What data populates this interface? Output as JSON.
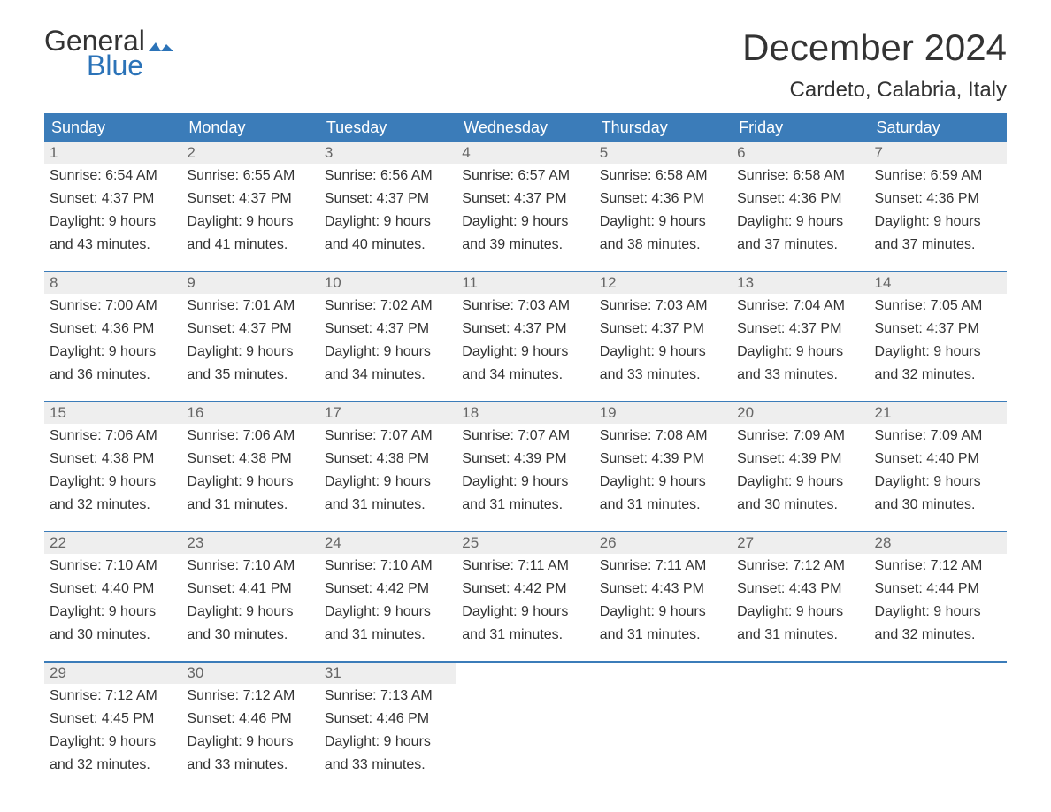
{
  "logo": {
    "general": "General",
    "blue": "Blue",
    "flag_color": "#2b73b8"
  },
  "title": "December 2024",
  "location": "Cardeto, Calabria, Italy",
  "day_labels": [
    "Sunday",
    "Monday",
    "Tuesday",
    "Wednesday",
    "Thursday",
    "Friday",
    "Saturday"
  ],
  "colors": {
    "header_bg": "#3b7cb9",
    "header_text": "#ffffff",
    "daynum_bg": "#eeeeee",
    "daynum_text": "#666666",
    "body_text": "#333333",
    "accent": "#2b73b8",
    "page_bg": "#ffffff"
  },
  "fonts": {
    "title_size": 42,
    "location_size": 24,
    "header_size": 18,
    "daynum_size": 17,
    "body_size": 16
  },
  "weeks": [
    [
      {
        "n": "1",
        "sr": "Sunrise: 6:54 AM",
        "ss": "Sunset: 4:37 PM",
        "d1": "Daylight: 9 hours",
        "d2": "and 43 minutes."
      },
      {
        "n": "2",
        "sr": "Sunrise: 6:55 AM",
        "ss": "Sunset: 4:37 PM",
        "d1": "Daylight: 9 hours",
        "d2": "and 41 minutes."
      },
      {
        "n": "3",
        "sr": "Sunrise: 6:56 AM",
        "ss": "Sunset: 4:37 PM",
        "d1": "Daylight: 9 hours",
        "d2": "and 40 minutes."
      },
      {
        "n": "4",
        "sr": "Sunrise: 6:57 AM",
        "ss": "Sunset: 4:37 PM",
        "d1": "Daylight: 9 hours",
        "d2": "and 39 minutes."
      },
      {
        "n": "5",
        "sr": "Sunrise: 6:58 AM",
        "ss": "Sunset: 4:36 PM",
        "d1": "Daylight: 9 hours",
        "d2": "and 38 minutes."
      },
      {
        "n": "6",
        "sr": "Sunrise: 6:58 AM",
        "ss": "Sunset: 4:36 PM",
        "d1": "Daylight: 9 hours",
        "d2": "and 37 minutes."
      },
      {
        "n": "7",
        "sr": "Sunrise: 6:59 AM",
        "ss": "Sunset: 4:36 PM",
        "d1": "Daylight: 9 hours",
        "d2": "and 37 minutes."
      }
    ],
    [
      {
        "n": "8",
        "sr": "Sunrise: 7:00 AM",
        "ss": "Sunset: 4:36 PM",
        "d1": "Daylight: 9 hours",
        "d2": "and 36 minutes."
      },
      {
        "n": "9",
        "sr": "Sunrise: 7:01 AM",
        "ss": "Sunset: 4:37 PM",
        "d1": "Daylight: 9 hours",
        "d2": "and 35 minutes."
      },
      {
        "n": "10",
        "sr": "Sunrise: 7:02 AM",
        "ss": "Sunset: 4:37 PM",
        "d1": "Daylight: 9 hours",
        "d2": "and 34 minutes."
      },
      {
        "n": "11",
        "sr": "Sunrise: 7:03 AM",
        "ss": "Sunset: 4:37 PM",
        "d1": "Daylight: 9 hours",
        "d2": "and 34 minutes."
      },
      {
        "n": "12",
        "sr": "Sunrise: 7:03 AM",
        "ss": "Sunset: 4:37 PM",
        "d1": "Daylight: 9 hours",
        "d2": "and 33 minutes."
      },
      {
        "n": "13",
        "sr": "Sunrise: 7:04 AM",
        "ss": "Sunset: 4:37 PM",
        "d1": "Daylight: 9 hours",
        "d2": "and 33 minutes."
      },
      {
        "n": "14",
        "sr": "Sunrise: 7:05 AM",
        "ss": "Sunset: 4:37 PM",
        "d1": "Daylight: 9 hours",
        "d2": "and 32 minutes."
      }
    ],
    [
      {
        "n": "15",
        "sr": "Sunrise: 7:06 AM",
        "ss": "Sunset: 4:38 PM",
        "d1": "Daylight: 9 hours",
        "d2": "and 32 minutes."
      },
      {
        "n": "16",
        "sr": "Sunrise: 7:06 AM",
        "ss": "Sunset: 4:38 PM",
        "d1": "Daylight: 9 hours",
        "d2": "and 31 minutes."
      },
      {
        "n": "17",
        "sr": "Sunrise: 7:07 AM",
        "ss": "Sunset: 4:38 PM",
        "d1": "Daylight: 9 hours",
        "d2": "and 31 minutes."
      },
      {
        "n": "18",
        "sr": "Sunrise: 7:07 AM",
        "ss": "Sunset: 4:39 PM",
        "d1": "Daylight: 9 hours",
        "d2": "and 31 minutes."
      },
      {
        "n": "19",
        "sr": "Sunrise: 7:08 AM",
        "ss": "Sunset: 4:39 PM",
        "d1": "Daylight: 9 hours",
        "d2": "and 31 minutes."
      },
      {
        "n": "20",
        "sr": "Sunrise: 7:09 AM",
        "ss": "Sunset: 4:39 PM",
        "d1": "Daylight: 9 hours",
        "d2": "and 30 minutes."
      },
      {
        "n": "21",
        "sr": "Sunrise: 7:09 AM",
        "ss": "Sunset: 4:40 PM",
        "d1": "Daylight: 9 hours",
        "d2": "and 30 minutes."
      }
    ],
    [
      {
        "n": "22",
        "sr": "Sunrise: 7:10 AM",
        "ss": "Sunset: 4:40 PM",
        "d1": "Daylight: 9 hours",
        "d2": "and 30 minutes."
      },
      {
        "n": "23",
        "sr": "Sunrise: 7:10 AM",
        "ss": "Sunset: 4:41 PM",
        "d1": "Daylight: 9 hours",
        "d2": "and 30 minutes."
      },
      {
        "n": "24",
        "sr": "Sunrise: 7:10 AM",
        "ss": "Sunset: 4:42 PM",
        "d1": "Daylight: 9 hours",
        "d2": "and 31 minutes."
      },
      {
        "n": "25",
        "sr": "Sunrise: 7:11 AM",
        "ss": "Sunset: 4:42 PM",
        "d1": "Daylight: 9 hours",
        "d2": "and 31 minutes."
      },
      {
        "n": "26",
        "sr": "Sunrise: 7:11 AM",
        "ss": "Sunset: 4:43 PM",
        "d1": "Daylight: 9 hours",
        "d2": "and 31 minutes."
      },
      {
        "n": "27",
        "sr": "Sunrise: 7:12 AM",
        "ss": "Sunset: 4:43 PM",
        "d1": "Daylight: 9 hours",
        "d2": "and 31 minutes."
      },
      {
        "n": "28",
        "sr": "Sunrise: 7:12 AM",
        "ss": "Sunset: 4:44 PM",
        "d1": "Daylight: 9 hours",
        "d2": "and 32 minutes."
      }
    ],
    [
      {
        "n": "29",
        "sr": "Sunrise: 7:12 AM",
        "ss": "Sunset: 4:45 PM",
        "d1": "Daylight: 9 hours",
        "d2": "and 32 minutes."
      },
      {
        "n": "30",
        "sr": "Sunrise: 7:12 AM",
        "ss": "Sunset: 4:46 PM",
        "d1": "Daylight: 9 hours",
        "d2": "and 33 minutes."
      },
      {
        "n": "31",
        "sr": "Sunrise: 7:13 AM",
        "ss": "Sunset: 4:46 PM",
        "d1": "Daylight: 9 hours",
        "d2": "and 33 minutes."
      },
      null,
      null,
      null,
      null
    ]
  ]
}
